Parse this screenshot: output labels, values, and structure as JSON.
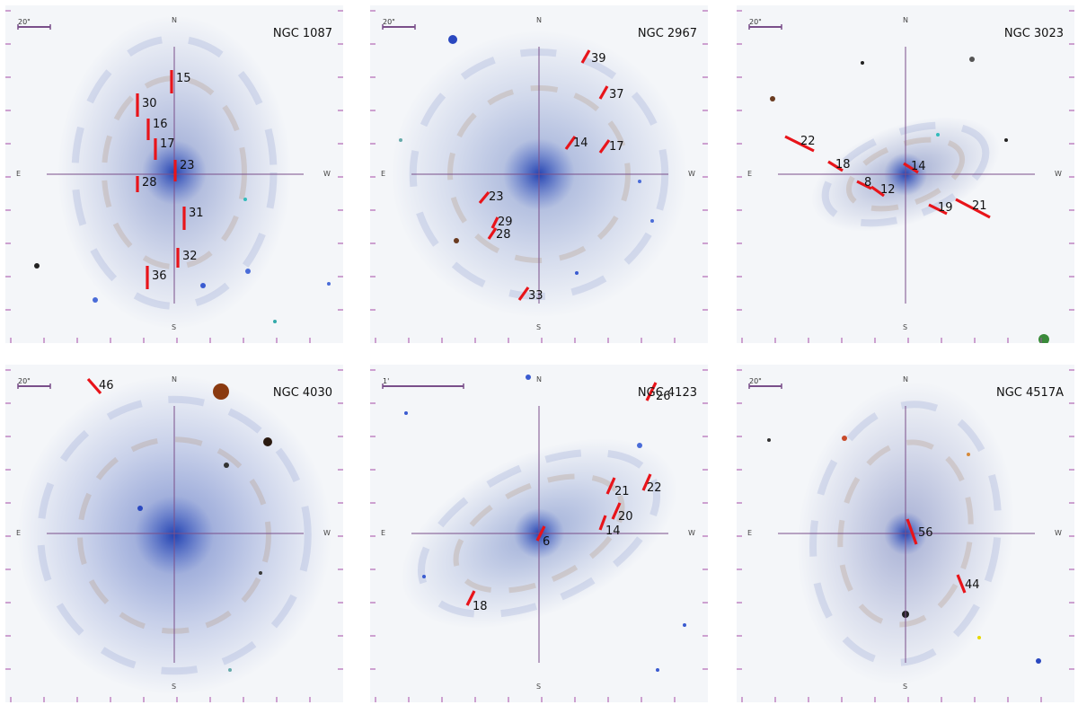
{
  "panels": [
    {
      "name": "NGC 1087",
      "scale_label": "20\"",
      "dirs": {
        "n": "N",
        "s": "S",
        "e": "E",
        "w": "W"
      },
      "regions": [
        {
          "label": "15"
        },
        {
          "label": "30"
        },
        {
          "label": "16"
        },
        {
          "label": "17"
        },
        {
          "label": "23"
        },
        {
          "label": "28"
        },
        {
          "label": "31"
        },
        {
          "label": "32"
        },
        {
          "label": "36"
        }
      ]
    },
    {
      "name": "NGC 2967",
      "scale_label": "20\"",
      "dirs": {
        "n": "N",
        "s": "S",
        "e": "E",
        "w": "W"
      },
      "regions": [
        {
          "label": "39"
        },
        {
          "label": "37"
        },
        {
          "label": "14"
        },
        {
          "label": "17"
        },
        {
          "label": "23"
        },
        {
          "label": "29"
        },
        {
          "label": "28"
        },
        {
          "label": "33"
        }
      ]
    },
    {
      "name": "NGC 3023",
      "scale_label": "20\"",
      "dirs": {
        "n": "N",
        "s": "S",
        "e": "E",
        "w": "W"
      },
      "regions": [
        {
          "label": "22"
        },
        {
          "label": "18"
        },
        {
          "label": "14"
        },
        {
          "label": "8"
        },
        {
          "label": "12"
        },
        {
          "label": "19"
        },
        {
          "label": "21"
        }
      ]
    },
    {
      "name": "NGC 4030",
      "scale_label": "20\"",
      "dirs": {
        "n": "N",
        "s": "S",
        "e": "E",
        "w": "W"
      },
      "regions": [
        {
          "label": "46"
        }
      ]
    },
    {
      "name": "NGC 4123",
      "scale_label": "1'",
      "dirs": {
        "n": "N",
        "s": "S",
        "e": "E",
        "w": "W"
      },
      "regions": [
        {
          "label": "26"
        },
        {
          "label": "21"
        },
        {
          "label": "22"
        },
        {
          "label": "20"
        },
        {
          "label": "14"
        },
        {
          "label": "6"
        },
        {
          "label": "18"
        }
      ]
    },
    {
      "name": "NGC 4517A",
      "scale_label": "20\"",
      "dirs": {
        "n": "N",
        "s": "S",
        "e": "E",
        "w": "W"
      },
      "regions": [
        {
          "label": "56"
        },
        {
          "label": "44"
        }
      ]
    }
  ],
  "colors": {
    "slit": "#e8141a",
    "crosshair": "#7a4f8a",
    "background": "#f4f6f9",
    "galaxy": "#5a6fb5"
  }
}
